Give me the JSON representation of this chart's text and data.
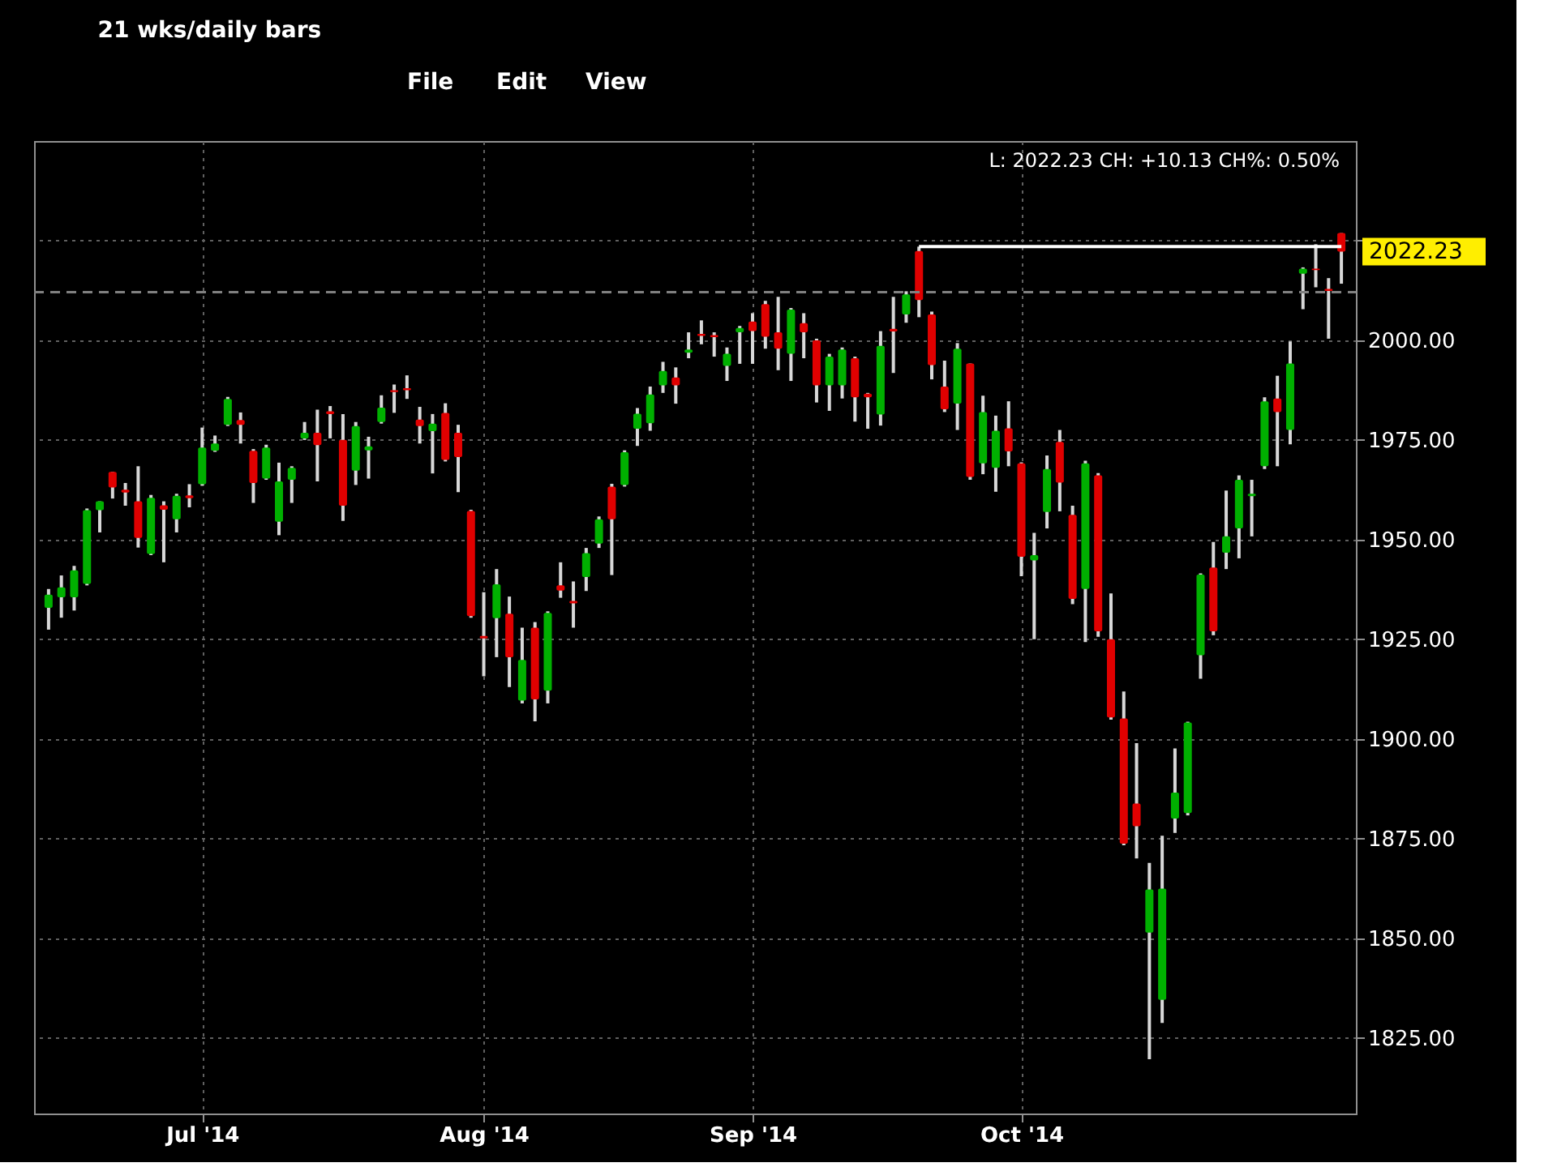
{
  "chart_data": {
    "type": "candlestick",
    "title": "21 wks/daily bars",
    "categories": [
      null,
      null,
      null,
      null,
      null,
      null,
      null,
      null,
      null,
      null,
      null,
      null,
      "Jul '14",
      null,
      null,
      null,
      null,
      null,
      null,
      null,
      null,
      null,
      null,
      null,
      null,
      null,
      null,
      null,
      null,
      null,
      null,
      null,
      null,
      null,
      "Aug '14",
      null,
      null,
      null,
      null,
      null,
      null,
      null,
      null,
      null,
      null,
      null,
      null,
      null,
      null,
      null,
      null,
      null,
      null,
      null,
      null,
      "Sep '14",
      null,
      null,
      null,
      null,
      null,
      null,
      null,
      null,
      null,
      null,
      null,
      null,
      null,
      null,
      null,
      null,
      null,
      null,
      null,
      null,
      "Oct '14",
      null,
      null,
      null,
      null,
      null,
      null,
      null,
      null,
      null,
      null,
      null,
      null,
      null,
      null,
      null,
      null,
      null,
      null,
      null,
      null,
      null,
      null,
      null,
      null,
      null
    ],
    "ohlc": [
      [
        1932.9,
        1937.6,
        1927.4,
        1936.2
      ],
      [
        1935.5,
        1941.0,
        1930.4,
        1938.0
      ],
      [
        1935.5,
        1943.4,
        1932.2,
        1942.3
      ],
      [
        1938.9,
        1957.8,
        1938.5,
        1957.4
      ],
      [
        1957.4,
        1959.6,
        1951.8,
        1959.6
      ],
      [
        1967.0,
        1967.0,
        1960.3,
        1963.1
      ],
      [
        1962.5,
        1964.2,
        1958.5,
        1961.8
      ],
      [
        1959.6,
        1968.4,
        1948.0,
        1950.4
      ],
      [
        1946.4,
        1961.2,
        1946.1,
        1960.5
      ],
      [
        1958.6,
        1959.6,
        1944.3,
        1957.5
      ],
      [
        1955.1,
        1961.5,
        1951.8,
        1961.0
      ],
      [
        1961.1,
        1963.9,
        1958.1,
        1960.4
      ],
      [
        1963.9,
        1978.1,
        1963.5,
        1973.1
      ],
      [
        1972.3,
        1976.1,
        1972.0,
        1974.1
      ],
      [
        1978.8,
        1985.8,
        1978.5,
        1985.3
      ],
      [
        1980.0,
        1981.9,
        1974.1,
        1978.8
      ],
      [
        1972.3,
        1972.7,
        1959.2,
        1964.2
      ],
      [
        1965.3,
        1973.8,
        1965.0,
        1973.1
      ],
      [
        1954.5,
        1969.3,
        1951.1,
        1964.6
      ],
      [
        1965.0,
        1968.4,
        1959.2,
        1968.0
      ],
      [
        1975.4,
        1979.5,
        1975.0,
        1976.8
      ],
      [
        1976.8,
        1982.6,
        1964.6,
        1973.7
      ],
      [
        1982.2,
        1983.5,
        1975.4,
        1981.5
      ],
      [
        1975.0,
        1981.5,
        1954.7,
        1958.5
      ],
      [
        1967.3,
        1979.5,
        1963.7,
        1978.5
      ],
      [
        1972.4,
        1975.8,
        1965.3,
        1973.4
      ],
      [
        1979.5,
        1986.2,
        1979.1,
        1983.1
      ],
      [
        1987.5,
        1988.9,
        1981.8,
        1987.0
      ],
      [
        1988.0,
        1991.2,
        1985.3,
        1987.5
      ],
      [
        1980.1,
        1983.3,
        1974.1,
        1978.5
      ],
      [
        1977.2,
        1981.5,
        1966.6,
        1979.1
      ],
      [
        1981.8,
        1984.2,
        1969.6,
        1970.0
      ],
      [
        1976.8,
        1978.8,
        1961.9,
        1970.7
      ],
      [
        1957.2,
        1957.5,
        1930.4,
        1930.8
      ],
      [
        1925.8,
        1936.8,
        1915.7,
        1925.2
      ],
      [
        1930.3,
        1942.6,
        1920.5,
        1938.8
      ],
      [
        1931.4,
        1935.7,
        1913.0,
        1920.5
      ],
      [
        1909.6,
        1927.9,
        1908.9,
        1919.8
      ],
      [
        1927.9,
        1929.3,
        1904.4,
        1909.9
      ],
      [
        1912.1,
        1932.0,
        1908.9,
        1931.6
      ],
      [
        1938.5,
        1944.3,
        1935.4,
        1937.2
      ],
      [
        1934.6,
        1939.5,
        1927.9,
        1934.0
      ],
      [
        1940.6,
        1947.9,
        1937.1,
        1946.6
      ],
      [
        1949.0,
        1955.8,
        1947.9,
        1955.1
      ],
      [
        1963.3,
        1964.0,
        1941.1,
        1955.1
      ],
      [
        1963.7,
        1972.4,
        1963.3,
        1971.9
      ],
      [
        1977.8,
        1983.0,
        1973.5,
        1981.6
      ],
      [
        1979.2,
        1988.4,
        1977.3,
        1986.4
      ],
      [
        1988.7,
        1994.6,
        1986.8,
        1992.3
      ],
      [
        1990.7,
        1993.2,
        1984.1,
        1988.7
      ],
      [
        1996.9,
        2002.0,
        1995.5,
        1997.7
      ],
      [
        2001.6,
        2005.0,
        1999.0,
        2001.1
      ],
      [
        2001.3,
        2002.0,
        1995.9,
        2000.8
      ],
      [
        1993.6,
        1998.2,
        1989.8,
        1996.6
      ],
      [
        2002.0,
        2003.6,
        1994.1,
        2003.1
      ],
      [
        2004.7,
        2006.8,
        1994.1,
        2002.3
      ],
      [
        2009.1,
        2009.9,
        1997.9,
        2000.9
      ],
      [
        2002.0,
        2010.9,
        1992.5,
        1997.9
      ],
      [
        1996.6,
        2008.1,
        1989.8,
        2007.7
      ],
      [
        2004.3,
        2006.8,
        1995.5,
        2002.0
      ],
      [
        2000.0,
        2000.4,
        1984.4,
        1988.7
      ],
      [
        1988.7,
        1996.6,
        1982.3,
        1995.9
      ],
      [
        1988.7,
        1998.2,
        1985.4,
        1997.7
      ],
      [
        1995.5,
        1995.9,
        1979.6,
        1985.7
      ],
      [
        1986.6,
        1986.8,
        1977.8,
        1985.7
      ],
      [
        1981.4,
        2002.3,
        1978.6,
        1998.6
      ],
      [
        2002.9,
        2010.9,
        1991.8,
        2002.2
      ],
      [
        2006.5,
        2012.3,
        2004.4,
        2011.5
      ],
      [
        2022.4,
        2023.5,
        2005.8,
        2010.1
      ],
      [
        2006.5,
        2007.2,
        1990.2,
        1993.8
      ],
      [
        1988.4,
        1994.9,
        1982.0,
        1982.7
      ],
      [
        1984.1,
        1999.3,
        1977.5,
        1997.9
      ],
      [
        1994.2,
        1994.2,
        1965.0,
        1965.7
      ],
      [
        1969.1,
        1986.1,
        1966.4,
        1982.0
      ],
      [
        1968.0,
        1981.1,
        1962.0,
        1977.3
      ],
      [
        1977.9,
        1984.7,
        1968.4,
        1972.1
      ],
      [
        1969.1,
        1969.4,
        1940.8,
        1945.7
      ],
      [
        1944.8,
        1951.7,
        1925.0,
        1946.1
      ],
      [
        1956.9,
        1971.1,
        1952.8,
        1967.7
      ],
      [
        1974.5,
        1977.5,
        1957.1,
        1964.3
      ],
      [
        1956.2,
        1958.5,
        1933.8,
        1935.1
      ],
      [
        1937.6,
        1969.8,
        1924.3,
        1969.1
      ],
      [
        1966.1,
        1966.7,
        1925.6,
        1927.0
      ],
      [
        1925.0,
        1936.5,
        1904.8,
        1905.4
      ],
      [
        1905.1,
        1911.9,
        1873.3,
        1873.7
      ],
      [
        1883.8,
        1898.9,
        1870.0,
        1878.1
      ],
      [
        1851.4,
        1868.9,
        1819.6,
        1862.2
      ],
      [
        1834.5,
        1875.7,
        1828.7,
        1862.4
      ],
      [
        1880.0,
        1897.6,
        1876.4,
        1886.5
      ],
      [
        1881.4,
        1904.3,
        1880.8,
        1904.1
      ],
      [
        1921.0,
        1941.5,
        1915.1,
        1941.2
      ],
      [
        1943.0,
        1949.4,
        1926.0,
        1927.0
      ],
      [
        1946.7,
        1962.3,
        1942.6,
        1950.8
      ],
      [
        1952.8,
        1966.1,
        1945.3,
        1965.0
      ],
      [
        1960.9,
        1965.0,
        1950.8,
        1961.5
      ],
      [
        1968.4,
        1985.7,
        1967.7,
        1984.7
      ],
      [
        1985.4,
        1991.1,
        1968.4,
        1982.0
      ],
      [
        1977.5,
        1999.7,
        1973.9,
        1994.2
      ],
      [
        2016.7,
        2018.3,
        2007.8,
        2018.0
      ],
      [
        2018.0,
        2024.1,
        2013.3,
        2017.6
      ],
      [
        2012.9,
        2015.6,
        2000.4,
        2012.4
      ],
      [
        2026.9,
        2026.9,
        2014.2,
        2022.23
      ]
    ],
    "colors": [
      "#00b000",
      "#00b000",
      "#00b000",
      "#00b000",
      "#00b000",
      "#e00000",
      "#e00000",
      "#e00000",
      "#00b000",
      "#e00000",
      "#00b000",
      "#e00000",
      "#00b000",
      "#00b000",
      "#00b000",
      "#e00000",
      "#e00000",
      "#00b000",
      "#00b000",
      "#00b000",
      "#00b000",
      "#e00000",
      "#e00000",
      "#e00000",
      "#00b000",
      "#00b000",
      "#00b000",
      "#e00000",
      "#e00000",
      "#e00000",
      "#00b000",
      "#e00000",
      "#e00000",
      "#e00000",
      "#e00000",
      "#00b000",
      "#e00000",
      "#00b000",
      "#e00000",
      "#00b000",
      "#e00000",
      "#e00000",
      "#00b000",
      "#00b000",
      "#e00000",
      "#00b000",
      "#00b000",
      "#00b000",
      "#00b000",
      "#e00000",
      "#00b000",
      "#e00000",
      "#e00000",
      "#00b000",
      "#00b000",
      "#e00000",
      "#e00000",
      "#e00000",
      "#00b000",
      "#e00000",
      "#e00000",
      "#00b000",
      "#00b000",
      "#e00000",
      "#e00000",
      "#00b000",
      "#e00000",
      "#00b000",
      "#e00000",
      "#e00000",
      "#e00000",
      "#00b000",
      "#e00000",
      "#00b000",
      "#00b000",
      "#e00000",
      "#e00000",
      "#00b000",
      "#00b000",
      "#e00000",
      "#e00000",
      "#00b000",
      "#e00000",
      "#e00000",
      "#e00000",
      "#e00000",
      "#00b000",
      "#00b000",
      "#00b000",
      "#00b000",
      "#00b000",
      "#e00000",
      "#00b000",
      "#00b000",
      "#00b000",
      "#00b000",
      "#e00000",
      "#00b000",
      "#00b000",
      "#e00000",
      "#e00000",
      "#e00000"
    ],
    "series": [
      {
        "type": "line",
        "color": "#ffffff",
        "values": [
          null,
          null,
          null,
          null,
          null,
          null,
          null,
          null,
          null,
          null,
          null,
          null,
          null,
          null,
          null,
          null,
          null,
          null,
          null,
          null,
          null,
          null,
          null,
          null,
          null,
          null,
          null,
          null,
          null,
          null,
          null,
          null,
          null,
          null,
          null,
          null,
          null,
          null,
          null,
          null,
          null,
          null,
          null,
          null,
          null,
          null,
          null,
          null,
          null,
          null,
          null,
          null,
          null,
          null,
          null,
          null,
          null,
          null,
          null,
          null,
          null,
          null,
          null,
          null,
          null,
          null,
          null,
          null,
          2023.5,
          2023.5,
          2023.5,
          2023.5,
          2023.5,
          2023.5,
          2023.5,
          2023.5,
          2023.5,
          2023.5,
          2023.5,
          2023.5,
          2023.5,
          2023.5,
          2023.5,
          2023.5,
          2023.5,
          2023.5,
          2023.5,
          2023.5,
          2023.5,
          2023.5,
          2023.5,
          2023.5,
          2023.5,
          2023.5,
          2023.5,
          2023.5,
          2023.5,
          2023.5,
          2023.5,
          2023.5,
          2023.5,
          2023.5
        ]
      }
    ],
    "ylim": [
      1806,
      2050
    ],
    "yticks": [
      {
        "value": 1825,
        "label": "1825.00"
      },
      {
        "value": 1850,
        "label": "1850.00"
      },
      {
        "value": 1875,
        "label": "1875.00"
      },
      {
        "value": 1900,
        "label": "1900.00"
      },
      {
        "value": 1925,
        "label": "1925.00"
      },
      {
        "value": 1950,
        "label": "1950.00"
      },
      {
        "value": 1975,
        "label": "1975.00"
      },
      {
        "value": 2000,
        "label": "2000.00"
      },
      {
        "value": 2025,
        "label": null
      }
    ],
    "grid": true,
    "ref_lines": [
      {
        "axis": "y",
        "value": 2012.1,
        "color": "#808080",
        "line_style": "dashed"
      }
    ],
    "annotations": [
      "File",
      "Edit",
      "View",
      "L: 2022.23 CH: +10.13 CH%: 0.50%",
      "2022.23"
    ]
  }
}
